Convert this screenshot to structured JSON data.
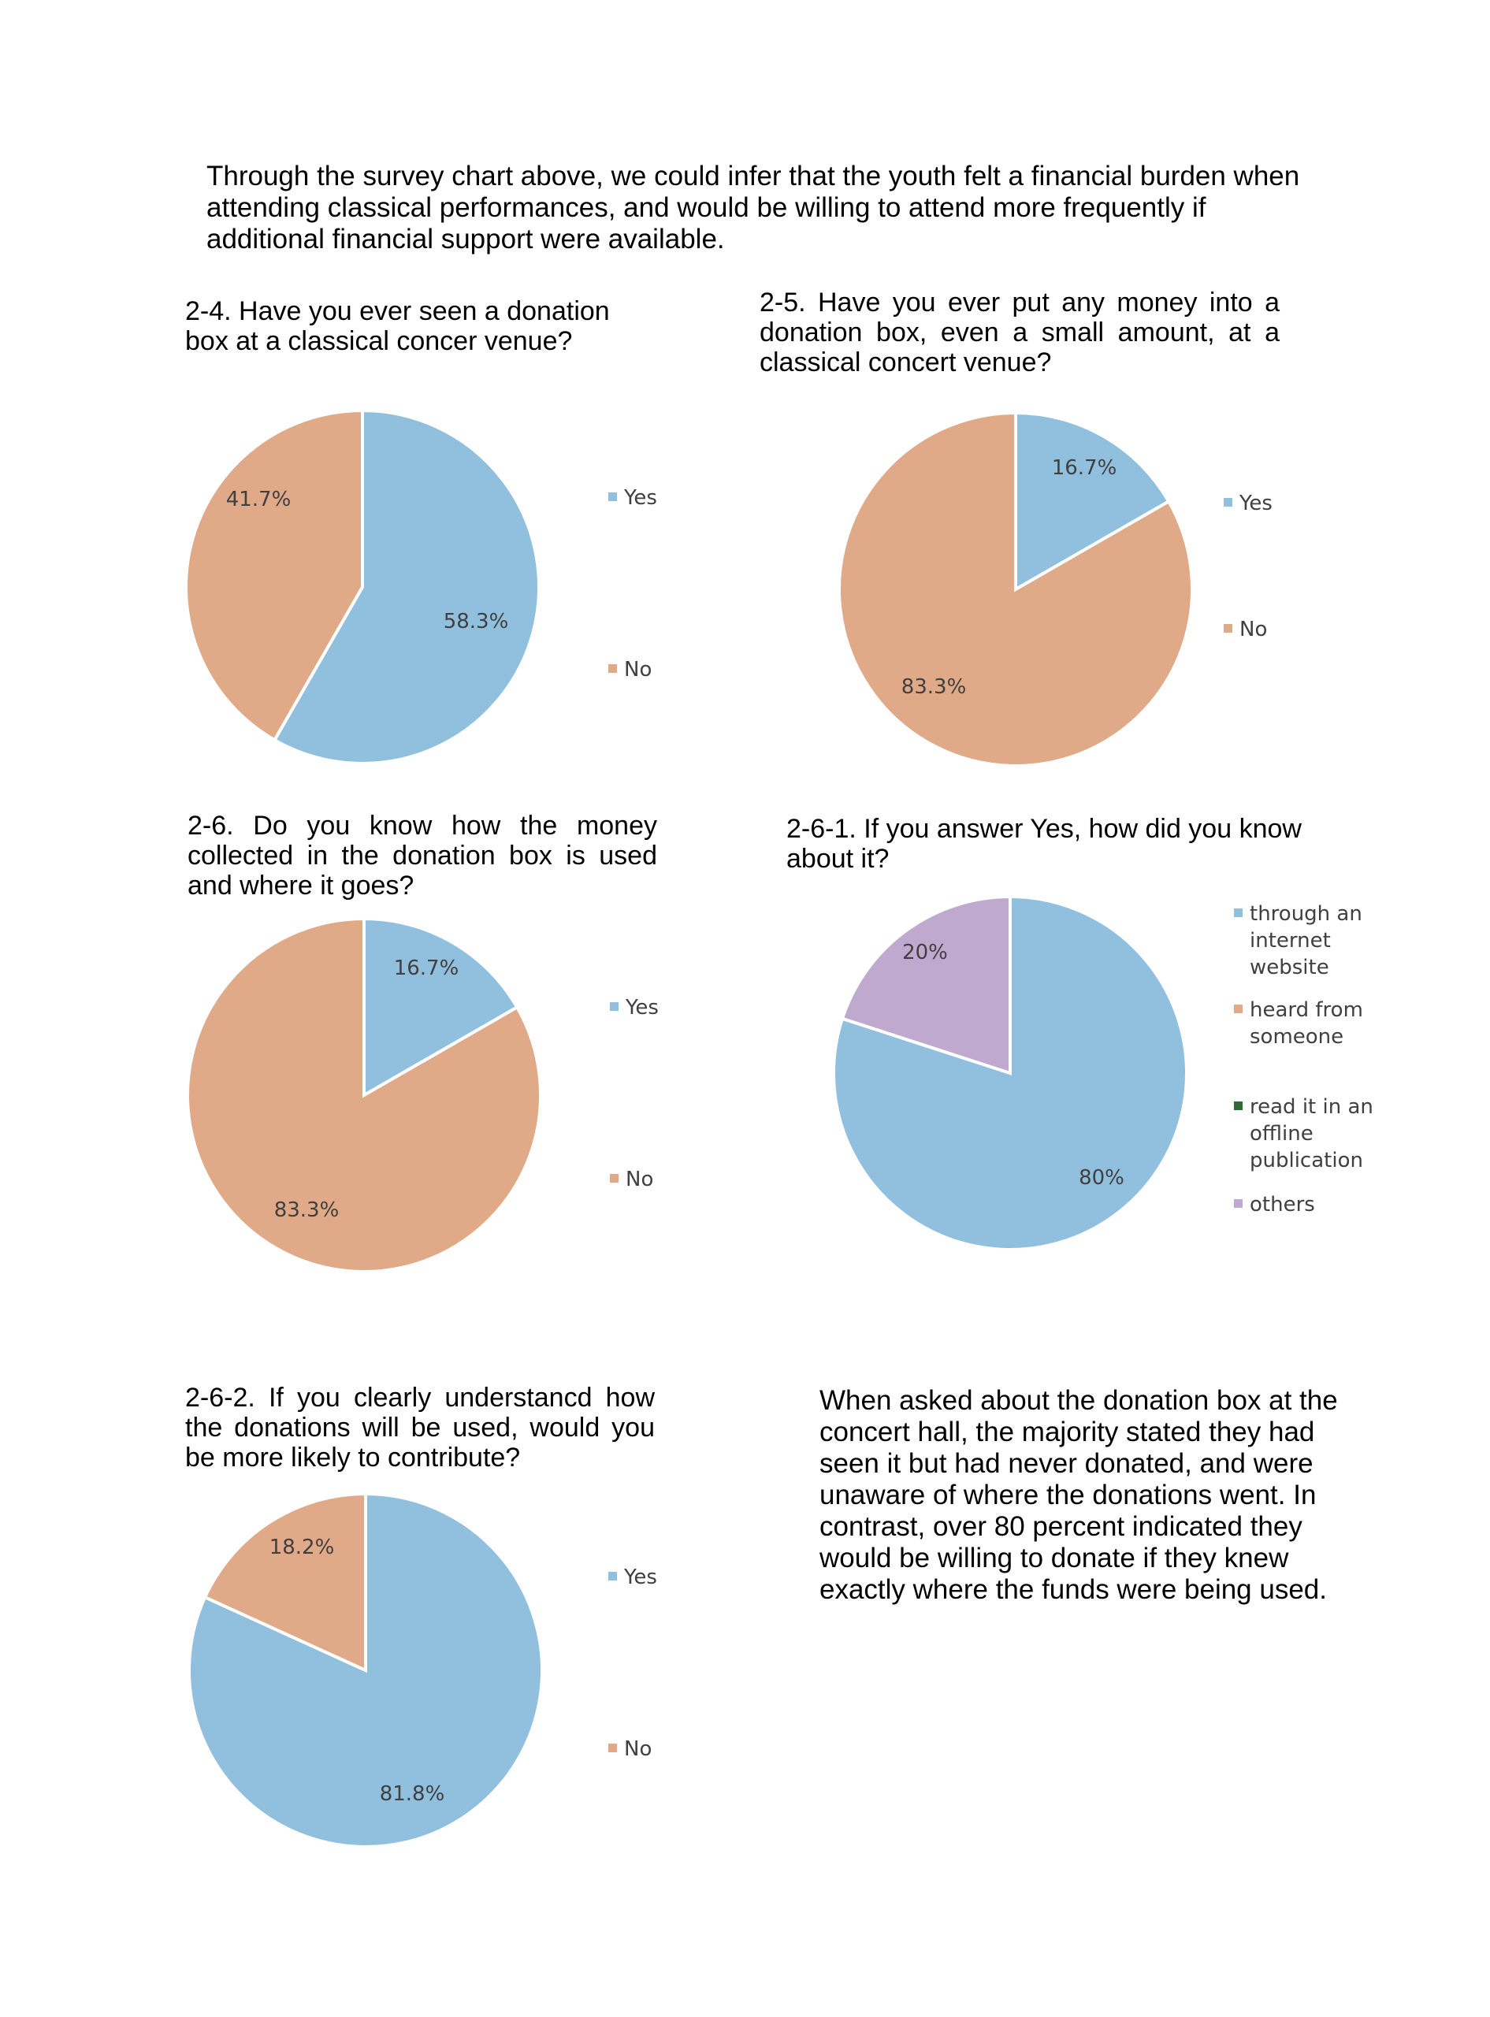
{
  "intro_text": "Through the survey chart above, we could infer that the youth felt a financial burden when attending classical performances, and would be willing to attend more frequently if additional financial support were available.",
  "summary_text": "When asked about the donation box at the concert hall, the majority stated they had seen it but had never donated, and were unaware of where the donations went. In contrast, over 80 percent indicated they would be willing to donate if they knew exactly where the funds were being used.",
  "colors": {
    "blue": "#91BFDE",
    "orange": "#E0A988",
    "green": "#2E6B35",
    "purple": "#C0A9CF",
    "label": "#404040"
  },
  "chart_data": [
    {
      "type": "pie",
      "id": "q2-4",
      "title": "2-4. Have you ever seen a donation box at a classical concer venue?",
      "categories": [
        "Yes",
        "No"
      ],
      "values": [
        58.3,
        41.7
      ],
      "labels": [
        "58.3%",
        "41.7%"
      ],
      "legend": [
        "Yes",
        "No"
      ]
    },
    {
      "type": "pie",
      "id": "q2-5",
      "title": "2-5. Have you ever put any money into a donation box, even a small amount, at a classical concert venue?",
      "categories": [
        "Yes",
        "No"
      ],
      "values": [
        16.7,
        83.3
      ],
      "labels": [
        "16.7%",
        "83.3%"
      ],
      "legend": [
        "Yes",
        "No"
      ]
    },
    {
      "type": "pie",
      "id": "q2-6",
      "title": "2-6. Do you know how the money collected in the donation box is used and where it goes?",
      "categories": [
        "Yes",
        "No"
      ],
      "values": [
        16.7,
        83.3
      ],
      "labels": [
        "16.7%",
        "83.3%"
      ],
      "legend": [
        "Yes",
        "No"
      ]
    },
    {
      "type": "pie",
      "id": "q2-6-1",
      "title": "2-6-1. If you answer Yes, how did you know about it?",
      "categories": [
        "through an internet website",
        "heard from someone",
        "read it in an offline publication",
        "others"
      ],
      "values": [
        80,
        0,
        0,
        20
      ],
      "labels": [
        "80%",
        "",
        "",
        "20%"
      ],
      "legend": [
        [
          "through an",
          "internet",
          "website"
        ],
        [
          "heard from",
          "someone"
        ],
        [
          "read it in an",
          "offline",
          "publication"
        ],
        [
          "others"
        ]
      ]
    },
    {
      "type": "pie",
      "id": "q2-6-2",
      "title": "2-6-2. If you clearly understancd how the donations will be used, would you be more likely to contribute?",
      "categories": [
        "Yes",
        "No"
      ],
      "values": [
        81.8,
        18.2
      ],
      "labels": [
        "81.8%",
        "18.2%"
      ],
      "legend": [
        "Yes",
        "No"
      ]
    }
  ]
}
